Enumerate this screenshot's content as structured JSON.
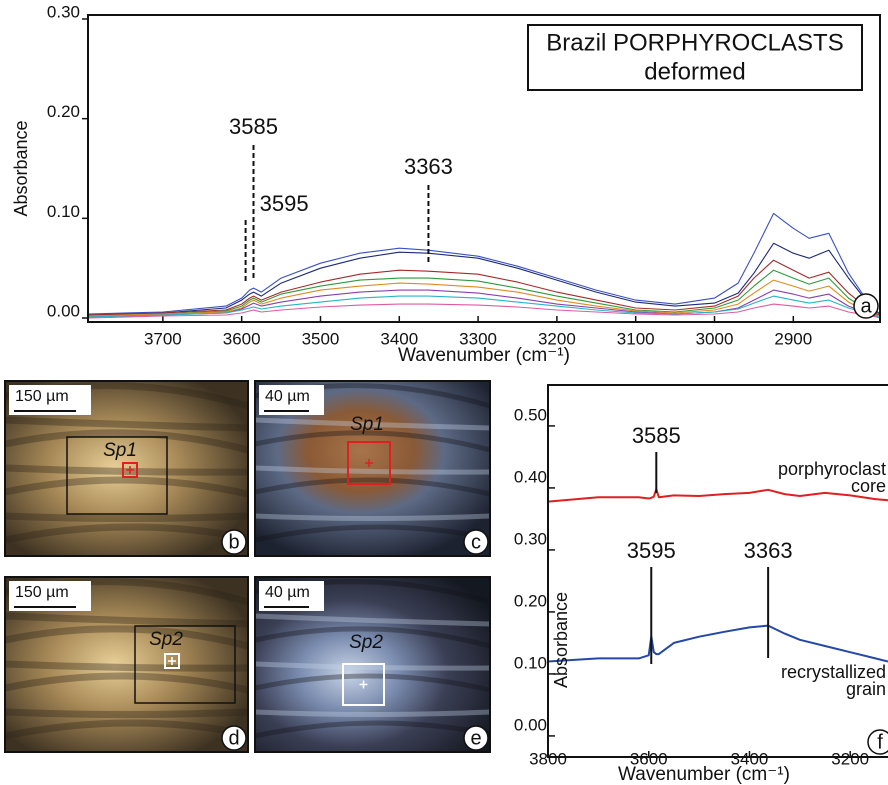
{
  "chart_data": [
    {
      "type": "line",
      "panel": "a",
      "title": "Brazil PORPHYROCLASTS",
      "subtitle": "deformed",
      "x_label": "Wavenumber (cm⁻¹)",
      "y_label": "Absorbance",
      "x": [
        3795,
        3700,
        3620,
        3600,
        3590,
        3585,
        3575,
        3550,
        3500,
        3450,
        3400,
        3363,
        3300,
        3250,
        3200,
        3150,
        3100,
        3050,
        3000,
        2970,
        2950,
        2925,
        2900,
        2880,
        2855,
        2830,
        2800,
        2790
      ],
      "series": [
        {
          "color": "#3a4fc4",
          "values": [
            0.004,
            0.006,
            0.012,
            0.02,
            0.028,
            0.03,
            0.026,
            0.04,
            0.055,
            0.065,
            0.07,
            0.068,
            0.062,
            0.052,
            0.04,
            0.028,
            0.018,
            0.014,
            0.02,
            0.035,
            0.065,
            0.105,
            0.09,
            0.08,
            0.085,
            0.045,
            0.01,
            0.004
          ]
        },
        {
          "color": "#1c2a78",
          "values": [
            0.003,
            0.005,
            0.01,
            0.018,
            0.024,
            0.026,
            0.022,
            0.035,
            0.05,
            0.06,
            0.066,
            0.065,
            0.06,
            0.05,
            0.038,
            0.026,
            0.016,
            0.012,
            0.015,
            0.025,
            0.045,
            0.075,
            0.065,
            0.06,
            0.068,
            0.04,
            0.01,
            0.004
          ]
        },
        {
          "color": "#a52a2a",
          "values": [
            0.003,
            0.005,
            0.008,
            0.014,
            0.02,
            0.022,
            0.018,
            0.026,
            0.036,
            0.044,
            0.048,
            0.047,
            0.044,
            0.036,
            0.026,
            0.018,
            0.01,
            0.008,
            0.012,
            0.022,
            0.04,
            0.058,
            0.048,
            0.04,
            0.046,
            0.025,
            0.006,
            0.003
          ]
        },
        {
          "color": "#2e9a3a",
          "values": [
            0.002,
            0.004,
            0.007,
            0.012,
            0.018,
            0.02,
            0.016,
            0.024,
            0.032,
            0.038,
            0.04,
            0.04,
            0.037,
            0.03,
            0.022,
            0.015,
            0.008,
            0.006,
            0.01,
            0.018,
            0.032,
            0.048,
            0.04,
            0.034,
            0.04,
            0.02,
            0.005,
            0.002
          ]
        },
        {
          "color": "#e08a1e",
          "values": [
            0.002,
            0.004,
            0.006,
            0.01,
            0.016,
            0.018,
            0.014,
            0.02,
            0.028,
            0.032,
            0.035,
            0.034,
            0.031,
            0.026,
            0.018,
            0.012,
            0.007,
            0.005,
            0.008,
            0.014,
            0.025,
            0.038,
            0.032,
            0.027,
            0.032,
            0.016,
            0.004,
            0.002
          ]
        },
        {
          "color": "#8a3fb0",
          "values": [
            0.001,
            0.003,
            0.005,
            0.009,
            0.013,
            0.015,
            0.012,
            0.016,
            0.022,
            0.026,
            0.028,
            0.028,
            0.025,
            0.02,
            0.014,
            0.01,
            0.006,
            0.004,
            0.006,
            0.01,
            0.018,
            0.028,
            0.024,
            0.02,
            0.024,
            0.012,
            0.003,
            0.001
          ]
        },
        {
          "color": "#29b3c7",
          "values": [
            0.001,
            0.003,
            0.005,
            0.008,
            0.01,
            0.011,
            0.009,
            0.012,
            0.016,
            0.02,
            0.022,
            0.022,
            0.02,
            0.016,
            0.012,
            0.008,
            0.005,
            0.004,
            0.006,
            0.009,
            0.015,
            0.022,
            0.018,
            0.015,
            0.018,
            0.01,
            0.003,
            0.001
          ]
        },
        {
          "color": "#e05aa0",
          "values": [
            0.0,
            0.002,
            0.003,
            0.005,
            0.007,
            0.008,
            0.006,
            0.008,
            0.011,
            0.013,
            0.014,
            0.014,
            0.013,
            0.011,
            0.008,
            0.006,
            0.004,
            0.003,
            0.004,
            0.006,
            0.01,
            0.014,
            0.012,
            0.01,
            0.012,
            0.006,
            0.002,
            0.0
          ]
        }
      ],
      "peaks": [
        3585,
        3595,
        3363
      ],
      "xlim": [
        3795,
        2790
      ],
      "xticks": [
        3700,
        3600,
        3500,
        3400,
        3300,
        3200,
        3100,
        3000,
        2900
      ],
      "ylim": [
        -0.004,
        0.304
      ],
      "yticks": [
        {
          "value": 0,
          "label": "0.00"
        },
        {
          "value": 0.1,
          "label": "0.10"
        },
        {
          "value": 0.2,
          "label": "0.20"
        },
        {
          "value": 0.3,
          "label": "0.30"
        }
      ]
    },
    {
      "type": "line",
      "panel": "f",
      "x_label": "Wavenumber (cm⁻¹)",
      "y_label": "Absorbance",
      "x": [
        3800,
        3700,
        3620,
        3600,
        3595,
        3590,
        3585,
        3580,
        3550,
        3500,
        3450,
        3400,
        3363,
        3330,
        3300,
        3250,
        3200,
        3150,
        3125
      ],
      "series": [
        {
          "name": "porphyroclast core",
          "color": "#e02020",
          "values": [
            0.378,
            0.385,
            0.385,
            0.383,
            0.384,
            0.386,
            0.398,
            0.385,
            0.388,
            0.387,
            0.39,
            0.392,
            0.397,
            0.39,
            0.387,
            0.392,
            0.388,
            0.382,
            0.38
          ]
        },
        {
          "name": "recrystallized grain",
          "color": "#2448a8",
          "values": [
            0.12,
            0.125,
            0.125,
            0.13,
            0.16,
            0.135,
            0.132,
            0.132,
            0.15,
            0.16,
            0.168,
            0.175,
            0.178,
            0.165,
            0.155,
            0.145,
            0.135,
            0.125,
            0.12
          ]
        }
      ],
      "peaks": [
        3585,
        3595,
        3363
      ],
      "xlim": [
        3800,
        3125
      ],
      "xticks": [
        3800,
        3600,
        3400,
        3200
      ],
      "ylim": [
        -0.034,
        0.566
      ],
      "yticks": [
        {
          "value": 0,
          "label": "0.00"
        },
        {
          "value": 0.1,
          "label": "0.10"
        },
        {
          "value": 0.2,
          "label": "0.20"
        },
        {
          "value": 0.3,
          "label": "0.30"
        },
        {
          "value": 0.4,
          "label": "0.40"
        },
        {
          "value": 0.5,
          "label": "0.50"
        }
      ]
    }
  ],
  "images": [
    {
      "panel": "b",
      "scale_bar": "150 µm",
      "spot": "Sp1"
    },
    {
      "panel": "c",
      "scale_bar": "40 µm",
      "spot": "Sp1"
    },
    {
      "panel": "d",
      "scale_bar": "150 µm",
      "spot": "Sp2"
    },
    {
      "panel": "e",
      "scale_bar": "40 µm",
      "spot": "Sp2"
    }
  ]
}
